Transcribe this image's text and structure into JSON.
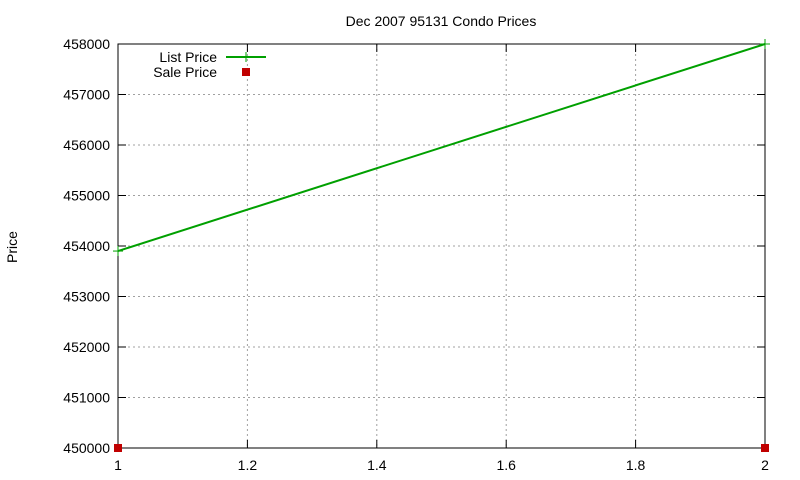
{
  "chart_data": {
    "type": "line",
    "title": "Dec 2007 95131 Condo Prices",
    "xlabel": "",
    "ylabel": "Price",
    "xlim": [
      1,
      2
    ],
    "ylim": [
      450000,
      458000
    ],
    "x_ticks": [
      "1",
      "1.2",
      "1.4",
      "1.6",
      "1.8",
      "2"
    ],
    "y_ticks": [
      "450000",
      "451000",
      "452000",
      "453000",
      "454000",
      "455000",
      "456000",
      "457000",
      "458000"
    ],
    "grid": true,
    "legend_position": "top-left",
    "series": [
      {
        "name": "List Price",
        "style": "linespoints",
        "marker": "plus",
        "color": "#00a000",
        "x": [
          1,
          2
        ],
        "y": [
          453900,
          458000
        ]
      },
      {
        "name": "Sale Price",
        "style": "points",
        "marker": "square",
        "color": "#c00000",
        "x": [
          1,
          2
        ],
        "y": [
          450000,
          450000
        ]
      }
    ]
  }
}
